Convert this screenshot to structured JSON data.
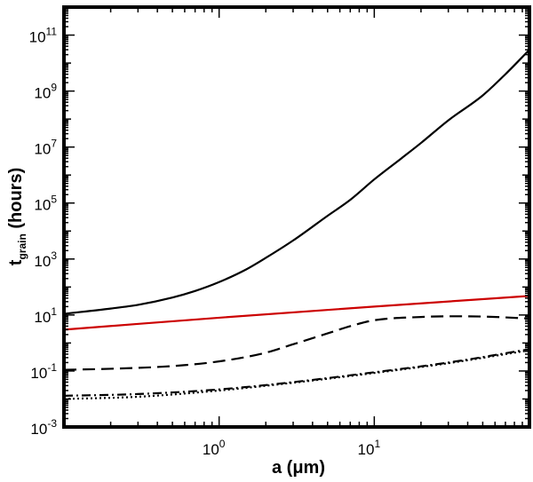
{
  "chart_data": {
    "type": "line",
    "title": "",
    "xlabel": "a (μm)",
    "ylabel": {
      "base": "t",
      "subscript": "grain",
      "rest": " (hours)"
    },
    "xscale": "log",
    "yscale": "log",
    "xlim": [
      0.1,
      100
    ],
    "ylim": [
      0.001,
      1000000000000.0
    ],
    "x_ticks": [
      {
        "value": 1,
        "base": "10",
        "exp": "0"
      },
      {
        "value": 10,
        "base": "10",
        "exp": "1"
      }
    ],
    "y_ticks": [
      {
        "value": 0.001,
        "base": "10",
        "exp": "-3"
      },
      {
        "value": 0.1,
        "base": "10",
        "exp": "-1"
      },
      {
        "value": 10,
        "base": "10",
        "exp": "1"
      },
      {
        "value": 1000,
        "base": "10",
        "exp": "3"
      },
      {
        "value": 100000,
        "base": "10",
        "exp": "5"
      },
      {
        "value": 10000000,
        "base": "10",
        "exp": "7"
      },
      {
        "value": 1000000000,
        "base": "10",
        "exp": "9"
      },
      {
        "value": 100000000000,
        "base": "10",
        "exp": "11"
      }
    ],
    "series": [
      {
        "name": "solid-black",
        "color": "#000000",
        "style": "solid",
        "x": [
          0.1,
          0.2,
          0.3,
          0.5,
          0.7,
          1,
          1.5,
          2,
          3,
          5,
          7,
          10,
          15,
          20,
          30,
          50,
          70,
          100
        ],
        "y": [
          11,
          17,
          23,
          42,
          72,
          150,
          430,
          1100,
          4600,
          35000,
          130000,
          700000,
          4000000,
          14000000,
          90000000,
          700000000,
          4000000000,
          30000000000
        ]
      },
      {
        "name": "red",
        "color": "#cc0000",
        "style": "solid",
        "x": [
          0.1,
          1,
          10,
          100
        ],
        "y": [
          3,
          8,
          20,
          48
        ]
      },
      {
        "name": "dashed",
        "color": "#000000",
        "style": "dashed",
        "x": [
          0.1,
          0.2,
          0.5,
          1,
          2,
          3,
          5,
          7,
          10,
          20,
          30,
          50,
          100
        ],
        "y": [
          0.11,
          0.12,
          0.15,
          0.22,
          0.45,
          0.9,
          2.2,
          4,
          6.5,
          8.5,
          9,
          8.8,
          7.5
        ]
      },
      {
        "name": "dash-dot",
        "color": "#000000",
        "style": "dashdot",
        "x": [
          0.1,
          0.3,
          1,
          3,
          10,
          30,
          100
        ],
        "y": [
          0.013,
          0.015,
          0.022,
          0.04,
          0.09,
          0.2,
          0.6
        ]
      },
      {
        "name": "dotted",
        "color": "#000000",
        "style": "dotted",
        "x": [
          0.1,
          0.3,
          1,
          3,
          10,
          30,
          100
        ],
        "y": [
          0.01,
          0.012,
          0.02,
          0.038,
          0.085,
          0.19,
          0.55
        ]
      }
    ]
  }
}
